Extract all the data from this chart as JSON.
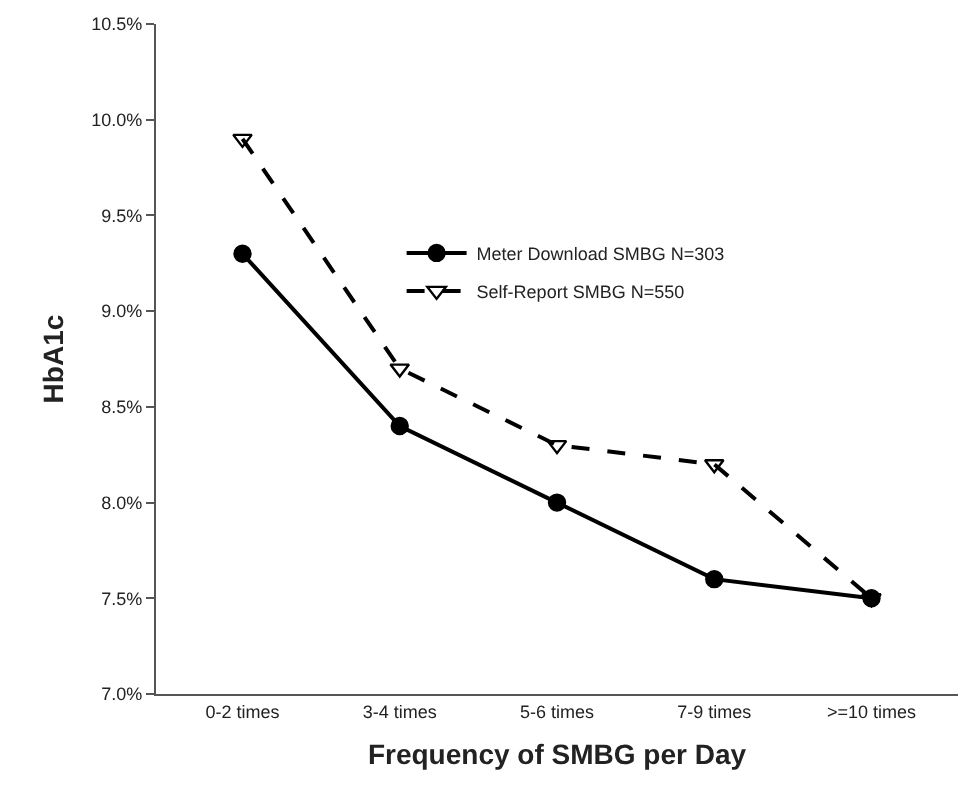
{
  "chart_data": {
    "type": "line",
    "xlabel": "Frequency of SMBG per Day",
    "ylabel": "HbA1c",
    "categories": [
      "0-2 times",
      "3-4 times",
      "5-6 times",
      "7-9 times",
      ">=10 times"
    ],
    "series": [
      {
        "name": "Meter Download SMBG N=303",
        "color": "#000000",
        "values": [
          9.3,
          8.4,
          8.0,
          7.6,
          7.5
        ],
        "marker": "circle",
        "line_style": "solid"
      },
      {
        "name": "Self-Report SMBG N=550",
        "color": "#000000",
        "values": [
          9.9,
          8.7,
          8.3,
          8.2,
          7.5
        ],
        "marker": "triangle-down-open",
        "line_style": "dashed"
      }
    ],
    "ylim": [
      7.0,
      10.5
    ],
    "yticks": [
      {
        "value": 7.0,
        "label": "7.0%"
      },
      {
        "value": 7.5,
        "label": "7.5%"
      },
      {
        "value": 8.0,
        "label": "8.0%"
      },
      {
        "value": 8.5,
        "label": "8.5%"
      },
      {
        "value": 9.0,
        "label": "9.0%"
      },
      {
        "value": 9.5,
        "label": "9.5%"
      },
      {
        "value": 10.0,
        "label": "10.0%"
      },
      {
        "value": 10.5,
        "label": "10.5%"
      }
    ],
    "grid": false,
    "legend": "right"
  }
}
